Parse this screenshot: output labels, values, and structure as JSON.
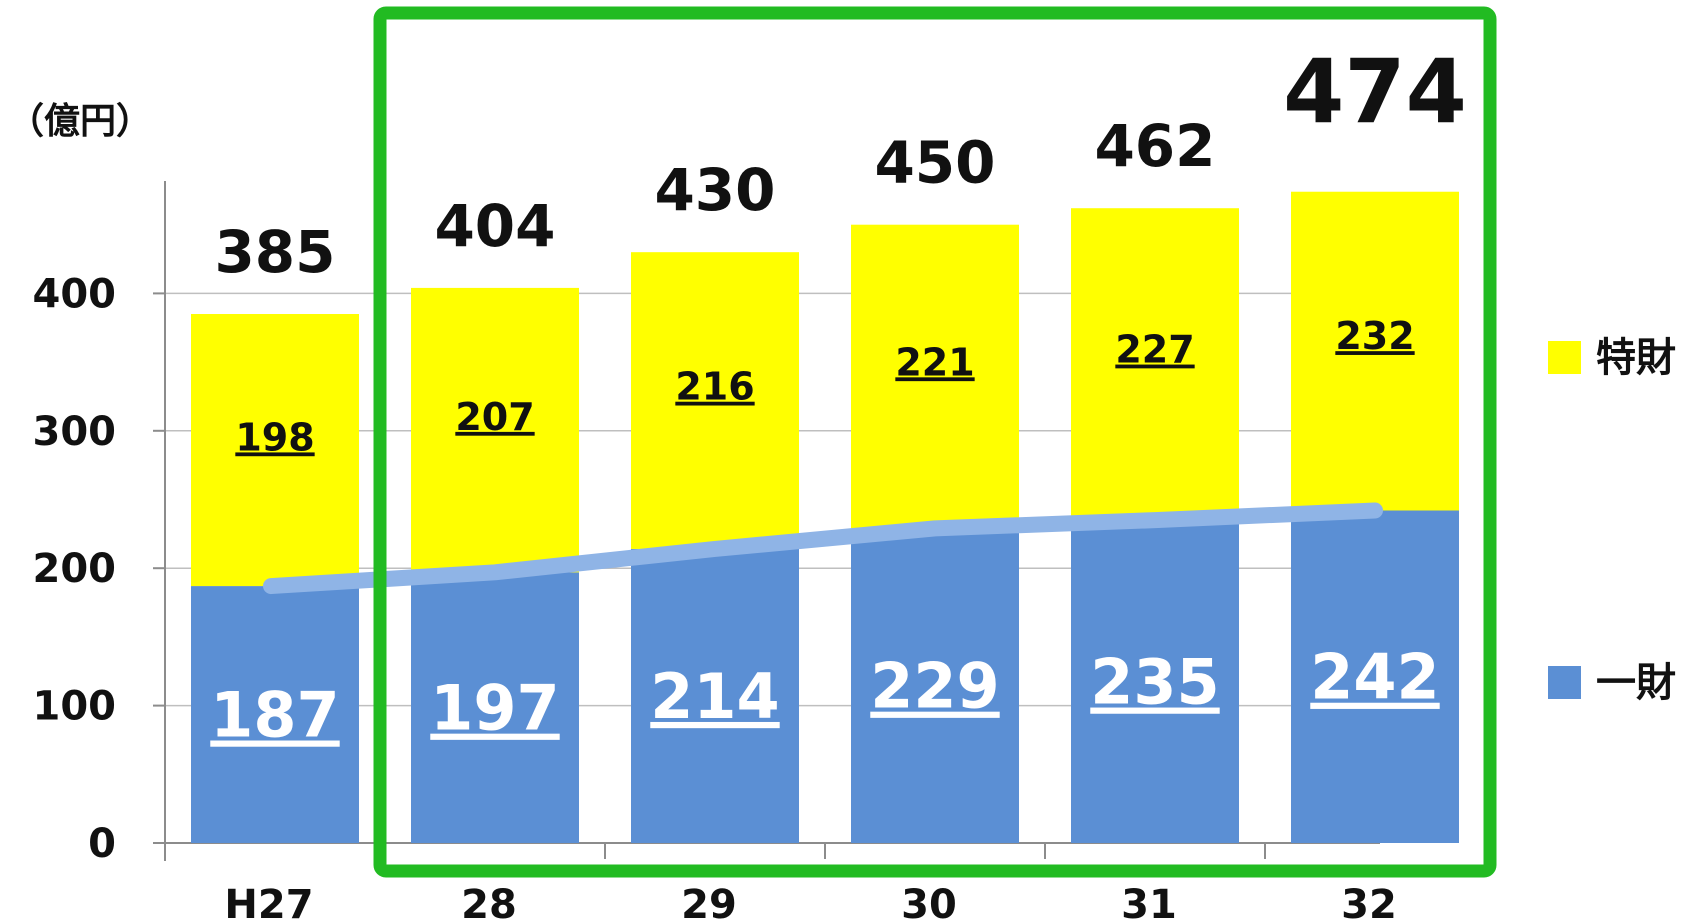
{
  "chart_data": {
    "type": "bar",
    "stacked": true,
    "unit_label": "（億円）",
    "categories": [
      "H27",
      "28",
      "29",
      "30",
      "31",
      "32"
    ],
    "series": [
      {
        "name": "一財",
        "color": "#5B8FD4",
        "values": [
          187,
          197,
          214,
          229,
          235,
          242
        ]
      },
      {
        "name": "特財",
        "color": "#FFFF00",
        "values": [
          198,
          207,
          216,
          221,
          227,
          232
        ]
      }
    ],
    "totals": [
      385,
      404,
      430,
      450,
      462,
      474
    ],
    "trend_line": {
      "series": "一財",
      "color": "#8FB4E6"
    },
    "y_ticks": [
      0,
      100,
      200,
      300,
      400
    ],
    "ylim": [
      0,
      500
    ],
    "grid": true,
    "legend_position": "right",
    "highlight": {
      "from_category": "28",
      "to_category": "32",
      "color": "#22BB22"
    },
    "emphasized_total_index": 5
  }
}
